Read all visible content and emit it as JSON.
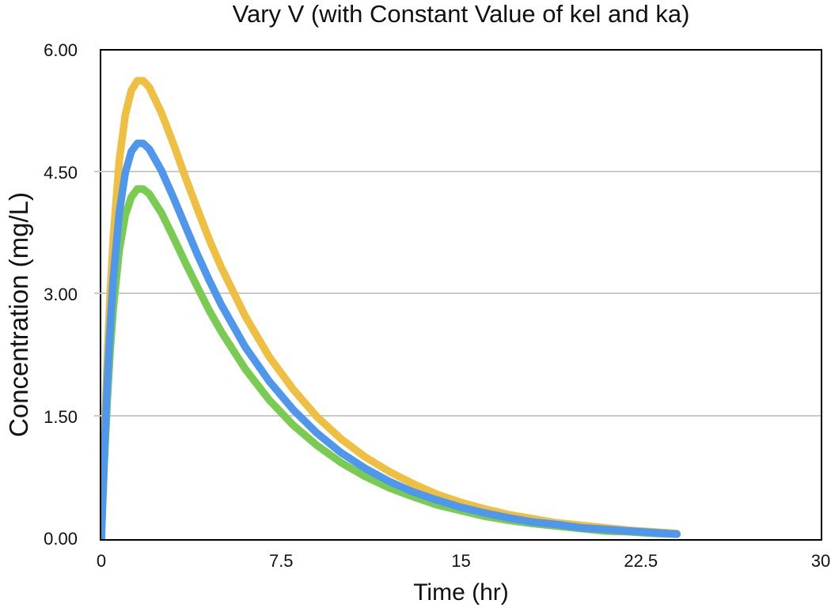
{
  "title": "Vary V (with Constant Value of kel and ka)",
  "colors": {
    "background": "#ffffff",
    "axis_border": "#000000",
    "gridline": "#c9c9c9",
    "text": "#111111",
    "series_yellow": "#efbf42",
    "series_blue": "#4e97ec",
    "series_green": "#79cb52"
  },
  "chart_data": {
    "type": "line",
    "title": "Vary V (with Constant Value of kel and ka)",
    "xlabel": "Time (hr)",
    "ylabel": "Concentration (mg/L)",
    "xlim": [
      0,
      30
    ],
    "ylim": [
      0,
      6
    ],
    "x_ticks": [
      0,
      7.5,
      15,
      22.5,
      30
    ],
    "x_tick_labels": [
      "0",
      "7.5",
      "15",
      "22.5",
      "30"
    ],
    "y_ticks": [
      0,
      1.5,
      3,
      4.5,
      6
    ],
    "y_tick_labels": [
      "0.00",
      "1.50",
      "3.00",
      "4.50",
      "6.00"
    ],
    "grid": "horizontal-only",
    "legend": "none",
    "line_width": 9.5,
    "x": [
      0,
      0.125,
      0.25,
      0.375,
      0.5,
      0.75,
      1,
      1.25,
      1.5,
      1.75,
      2,
      2.5,
      3,
      3.5,
      4,
      4.5,
      5,
      6,
      7,
      8,
      9,
      10,
      11,
      12,
      13,
      14,
      15,
      16,
      17,
      18,
      19,
      20,
      21,
      22,
      23,
      24
    ],
    "series": [
      {
        "name": "yellow-curve (highest Cmax ~5.65 mg/L at ~1.6 hr)",
        "color": "#efbf42",
        "values": [
          0,
          1.24,
          2.24,
          3.06,
          3.71,
          4.65,
          5.21,
          5.51,
          5.63,
          5.63,
          5.55,
          5.24,
          4.86,
          4.45,
          4.06,
          3.68,
          3.34,
          2.74,
          2.24,
          1.84,
          1.5,
          1.23,
          1.01,
          0.83,
          0.68,
          0.55,
          0.45,
          0.37,
          0.3,
          0.25,
          0.2,
          0.17,
          0.14,
          0.11,
          0.09,
          0.07
        ]
      },
      {
        "name": "green-curve (lowest Cmax ~4.30 mg/L at ~1.6 hr)",
        "color": "#79cb52",
        "values": [
          0,
          0.94,
          1.71,
          2.34,
          2.84,
          3.55,
          3.98,
          4.2,
          4.3,
          4.3,
          4.24,
          4.01,
          3.71,
          3.4,
          3.1,
          2.81,
          2.55,
          2.09,
          1.71,
          1.4,
          1.15,
          0.94,
          0.77,
          0.63,
          0.52,
          0.42,
          0.35,
          0.28,
          0.23,
          0.19,
          0.16,
          0.13,
          0.1,
          0.09,
          0.07,
          0.06
        ]
      },
      {
        "name": "blue-curve (middle Cmax ~4.87 mg/L at ~1.6 hr)",
        "color": "#4e97ec",
        "values": [
          0,
          1.07,
          1.94,
          2.64,
          3.21,
          4.01,
          4.5,
          4.76,
          4.86,
          4.86,
          4.79,
          4.53,
          4.2,
          3.85,
          3.5,
          3.18,
          2.88,
          2.36,
          1.94,
          1.59,
          1.3,
          1.06,
          0.87,
          0.71,
          0.58,
          0.48,
          0.39,
          0.32,
          0.26,
          0.21,
          0.18,
          0.14,
          0.12,
          0.1,
          0.08,
          0.06
        ]
      }
    ]
  }
}
